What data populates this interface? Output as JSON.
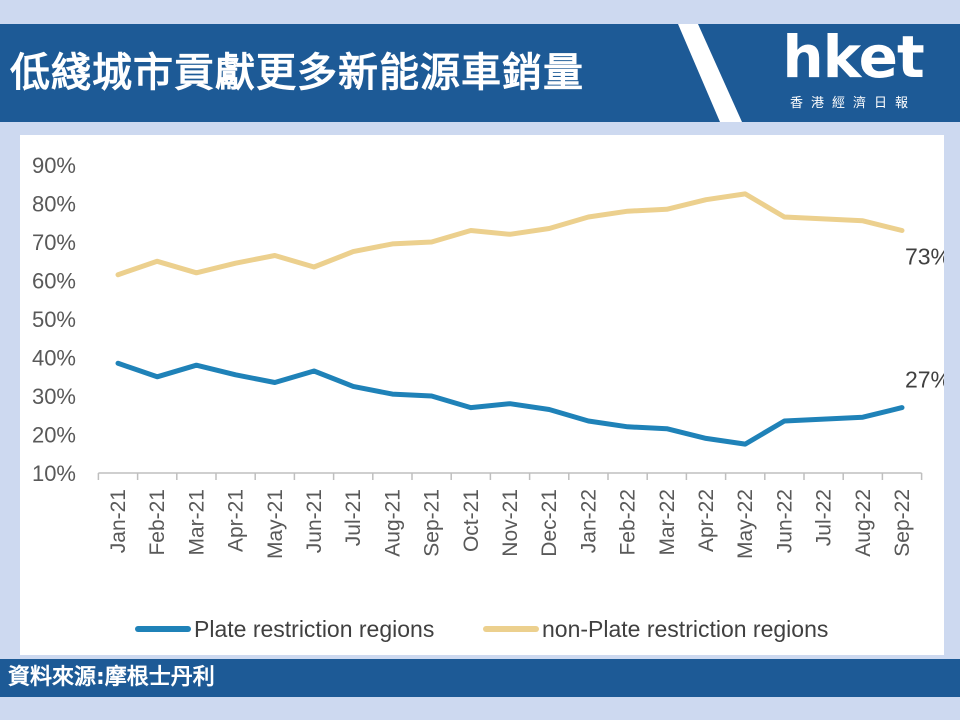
{
  "header": {
    "title": "低綫城市貢獻更多新能源車銷量",
    "logo_text": "hket",
    "logo_subtitle": "香港經濟日報"
  },
  "footer": {
    "source": "資料來源:摩根士丹利"
  },
  "colors": {
    "brand_blue": "#1d5a96",
    "plate_series": "#1f82b8",
    "non_plate_series": "#ecd08e"
  },
  "chart_data": {
    "type": "line",
    "x": [
      "Jan-21",
      "Feb-21",
      "Mar-21",
      "Apr-21",
      "May-21",
      "Jun-21",
      "Jul-21",
      "Aug-21",
      "Sep-21",
      "Oct-21",
      "Nov-21",
      "Dec-21",
      "Jan-22",
      "Feb-22",
      "Mar-22",
      "Apr-22",
      "May-22",
      "Jun-22",
      "Jul-22",
      "Aug-22",
      "Sep-22"
    ],
    "yticks": [
      "90%",
      "80%",
      "70%",
      "60%",
      "50%",
      "40%",
      "30%",
      "20%",
      "10%"
    ],
    "ylim": [
      10,
      90
    ],
    "grid": false,
    "legend_position": "bottom",
    "series": [
      {
        "name": "Plate restriction regions",
        "values": [
          38.5,
          35,
          38,
          35.5,
          33.5,
          36.5,
          32.5,
          30.5,
          30,
          27,
          28,
          26.5,
          23.5,
          22,
          21.5,
          19,
          17.5,
          23.5,
          24,
          24.5,
          27
        ],
        "end_label": "27%"
      },
      {
        "name": "non-Plate restriction regions",
        "values": [
          61.5,
          65,
          62,
          64.5,
          66.5,
          63.5,
          67.5,
          69.5,
          70,
          73,
          72,
          73.5,
          76.5,
          78,
          78.5,
          81,
          82.5,
          76.5,
          76,
          75.5,
          73
        ],
        "end_label": "73%"
      }
    ]
  }
}
